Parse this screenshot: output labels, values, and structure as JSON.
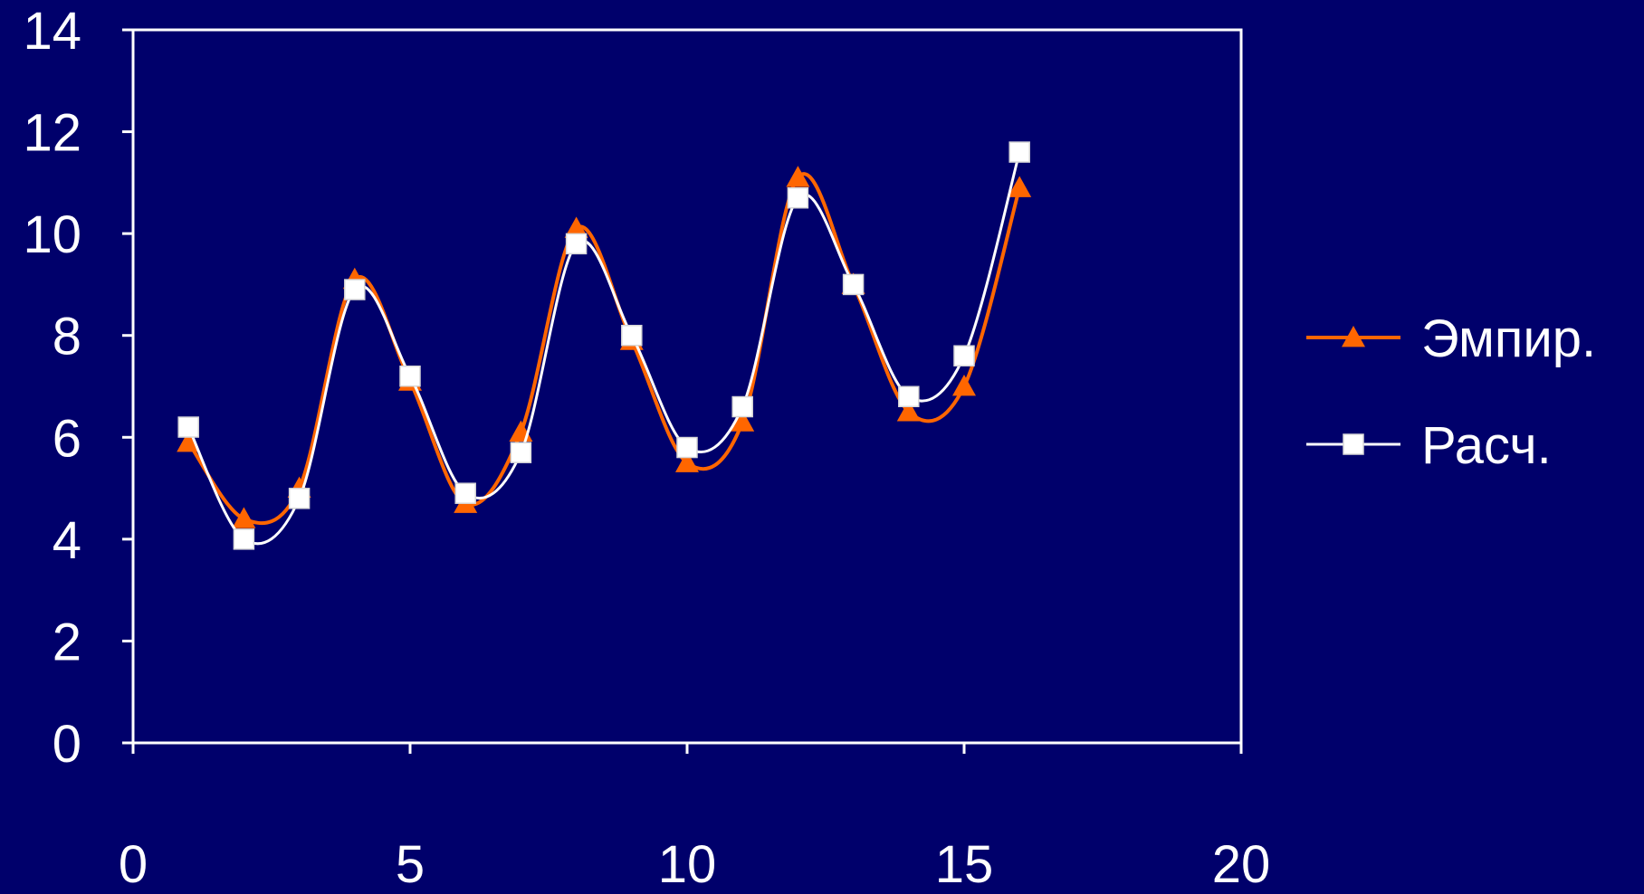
{
  "chart_data": {
    "type": "line",
    "title": "",
    "xlabel": "",
    "ylabel": "",
    "xlim": [
      0,
      20
    ],
    "ylim": [
      0,
      14
    ],
    "x_ticks": [
      0,
      5,
      10,
      15,
      20
    ],
    "y_ticks": [
      0,
      2,
      4,
      6,
      8,
      10,
      12,
      14
    ],
    "x_tick_labels": [
      "0",
      "5",
      "10",
      "15",
      "20"
    ],
    "y_tick_labels": [
      "0",
      "2",
      "4",
      "6",
      "8",
      "10",
      "12",
      "14"
    ],
    "grid": false,
    "smoothed": true,
    "legend_position": "right",
    "series": [
      {
        "name": "Эмпир.",
        "marker": "triangle",
        "color": "#ff6600",
        "x": [
          1,
          2,
          3,
          4,
          5,
          6,
          7,
          8,
          9,
          10,
          11,
          12,
          13,
          14,
          15,
          16
        ],
        "y": [
          5.9,
          4.4,
          5.0,
          9.1,
          7.1,
          4.7,
          6.1,
          10.1,
          7.9,
          5.5,
          6.3,
          11.1,
          9.0,
          6.5,
          7.0,
          10.9
        ]
      },
      {
        "name": "Расч.",
        "marker": "square",
        "color": "#ffffff",
        "x": [
          1,
          2,
          3,
          4,
          5,
          6,
          7,
          8,
          9,
          10,
          11,
          12,
          13,
          14,
          15,
          16
        ],
        "y": [
          6.2,
          4.0,
          4.8,
          8.9,
          7.2,
          4.9,
          5.7,
          9.8,
          8.0,
          5.8,
          6.6,
          10.7,
          9.0,
          6.8,
          7.6,
          11.6
        ]
      }
    ]
  },
  "colors": {
    "background": "#00006b",
    "axis": "#ffffff",
    "text": "#ffffff"
  }
}
